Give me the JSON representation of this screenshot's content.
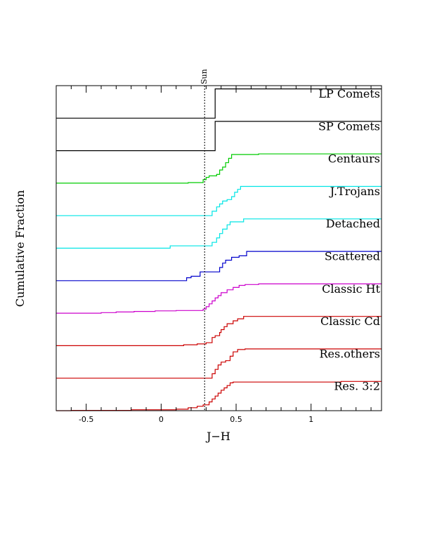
{
  "chart_data": {
    "type": "line",
    "xlabel": "J−H",
    "ylabel": "Cumulative Fraction",
    "xlim": [
      -0.7,
      1.47
    ],
    "x_ticks": [
      "-0.5",
      "0",
      "0.5",
      "1"
    ],
    "x_tick_values": [
      -0.5,
      0,
      0.5,
      1
    ],
    "reference_line": {
      "label": "Sun",
      "x": 0.29
    },
    "series": [
      {
        "name": "LP Comets",
        "color": "#000000",
        "steps": [
          [
            -0.7,
            0
          ],
          [
            0.36,
            0
          ],
          [
            0.36,
            1
          ],
          [
            1.47,
            1
          ]
        ]
      },
      {
        "name": "SP Comets",
        "color": "#000000",
        "steps": [
          [
            -0.7,
            0
          ],
          [
            0.36,
            0
          ],
          [
            0.36,
            1
          ],
          [
            1.47,
            1
          ]
        ]
      },
      {
        "name": "Centaurs",
        "color": "#00cc00",
        "steps": [
          [
            -0.7,
            0
          ],
          [
            0.18,
            0
          ],
          [
            0.18,
            0.02
          ],
          [
            0.28,
            0.02
          ],
          [
            0.28,
            0.12
          ],
          [
            0.3,
            0.12
          ],
          [
            0.3,
            0.2
          ],
          [
            0.32,
            0.2
          ],
          [
            0.32,
            0.25
          ],
          [
            0.37,
            0.25
          ],
          [
            0.37,
            0.3
          ],
          [
            0.39,
            0.3
          ],
          [
            0.39,
            0.45
          ],
          [
            0.41,
            0.45
          ],
          [
            0.41,
            0.55
          ],
          [
            0.43,
            0.55
          ],
          [
            0.43,
            0.7
          ],
          [
            0.45,
            0.7
          ],
          [
            0.45,
            0.85
          ],
          [
            0.47,
            0.85
          ],
          [
            0.47,
            0.98
          ],
          [
            0.65,
            0.98
          ],
          [
            0.65,
            1
          ],
          [
            1.47,
            1
          ]
        ]
      },
      {
        "name": "J.Trojans",
        "color": "#00e5e5",
        "steps": [
          [
            -0.7,
            0
          ],
          [
            0.34,
            0
          ],
          [
            0.34,
            0.15
          ],
          [
            0.37,
            0.15
          ],
          [
            0.37,
            0.3
          ],
          [
            0.39,
            0.3
          ],
          [
            0.39,
            0.4
          ],
          [
            0.41,
            0.4
          ],
          [
            0.41,
            0.5
          ],
          [
            0.44,
            0.5
          ],
          [
            0.44,
            0.55
          ],
          [
            0.47,
            0.55
          ],
          [
            0.47,
            0.65
          ],
          [
            0.49,
            0.65
          ],
          [
            0.49,
            0.8
          ],
          [
            0.51,
            0.8
          ],
          [
            0.51,
            0.9
          ],
          [
            0.53,
            0.9
          ],
          [
            0.53,
            1
          ],
          [
            1.47,
            1
          ]
        ]
      },
      {
        "name": "Detached",
        "color": "#00e5e5",
        "steps": [
          [
            -0.7,
            0
          ],
          [
            0.06,
            0
          ],
          [
            0.06,
            0.08
          ],
          [
            0.34,
            0.08
          ],
          [
            0.34,
            0.2
          ],
          [
            0.37,
            0.2
          ],
          [
            0.37,
            0.35
          ],
          [
            0.39,
            0.35
          ],
          [
            0.39,
            0.5
          ],
          [
            0.41,
            0.5
          ],
          [
            0.41,
            0.65
          ],
          [
            0.44,
            0.65
          ],
          [
            0.44,
            0.8
          ],
          [
            0.46,
            0.8
          ],
          [
            0.46,
            0.9
          ],
          [
            0.55,
            0.9
          ],
          [
            0.55,
            1
          ],
          [
            1.47,
            1
          ]
        ]
      },
      {
        "name": "Scattered",
        "color": "#0000cc",
        "steps": [
          [
            -0.7,
            0
          ],
          [
            0.17,
            0
          ],
          [
            0.17,
            0.1
          ],
          [
            0.2,
            0.1
          ],
          [
            0.2,
            0.15
          ],
          [
            0.26,
            0.15
          ],
          [
            0.26,
            0.3
          ],
          [
            0.39,
            0.3
          ],
          [
            0.39,
            0.45
          ],
          [
            0.41,
            0.45
          ],
          [
            0.41,
            0.6
          ],
          [
            0.43,
            0.6
          ],
          [
            0.43,
            0.7
          ],
          [
            0.47,
            0.7
          ],
          [
            0.47,
            0.8
          ],
          [
            0.52,
            0.8
          ],
          [
            0.52,
            0.85
          ],
          [
            0.57,
            0.85
          ],
          [
            0.57,
            1
          ],
          [
            1.47,
            1
          ]
        ]
      },
      {
        "name": "Classic Ht",
        "color": "#cc00cc",
        "steps": [
          [
            -0.7,
            0
          ],
          [
            -0.4,
            0
          ],
          [
            -0.4,
            0.02
          ],
          [
            -0.3,
            0.02
          ],
          [
            -0.3,
            0.04
          ],
          [
            -0.18,
            0.04
          ],
          [
            -0.18,
            0.06
          ],
          [
            -0.04,
            0.06
          ],
          [
            -0.04,
            0.08
          ],
          [
            0.1,
            0.08
          ],
          [
            0.1,
            0.09
          ],
          [
            0.28,
            0.09
          ],
          [
            0.28,
            0.14
          ],
          [
            0.3,
            0.14
          ],
          [
            0.3,
            0.22
          ],
          [
            0.32,
            0.22
          ],
          [
            0.32,
            0.32
          ],
          [
            0.34,
            0.32
          ],
          [
            0.34,
            0.42
          ],
          [
            0.36,
            0.42
          ],
          [
            0.36,
            0.52
          ],
          [
            0.38,
            0.52
          ],
          [
            0.38,
            0.6
          ],
          [
            0.4,
            0.6
          ],
          [
            0.4,
            0.7
          ],
          [
            0.44,
            0.7
          ],
          [
            0.44,
            0.8
          ],
          [
            0.48,
            0.8
          ],
          [
            0.48,
            0.88
          ],
          [
            0.52,
            0.88
          ],
          [
            0.52,
            0.95
          ],
          [
            0.56,
            0.95
          ],
          [
            0.56,
            0.98
          ],
          [
            0.65,
            0.98
          ],
          [
            0.65,
            1
          ],
          [
            1.47,
            1
          ]
        ]
      },
      {
        "name": "Classic Cd",
        "color": "#cc0000",
        "steps": [
          [
            -0.7,
            0
          ],
          [
            0.15,
            0
          ],
          [
            0.15,
            0.03
          ],
          [
            0.24,
            0.03
          ],
          [
            0.24,
            0.06
          ],
          [
            0.3,
            0.06
          ],
          [
            0.3,
            0.1
          ],
          [
            0.34,
            0.1
          ],
          [
            0.34,
            0.28
          ],
          [
            0.36,
            0.28
          ],
          [
            0.36,
            0.34
          ],
          [
            0.39,
            0.34
          ],
          [
            0.39,
            0.45
          ],
          [
            0.4,
            0.45
          ],
          [
            0.4,
            0.55
          ],
          [
            0.42,
            0.55
          ],
          [
            0.42,
            0.65
          ],
          [
            0.44,
            0.65
          ],
          [
            0.44,
            0.75
          ],
          [
            0.48,
            0.75
          ],
          [
            0.48,
            0.85
          ],
          [
            0.51,
            0.85
          ],
          [
            0.51,
            0.92
          ],
          [
            0.55,
            0.92
          ],
          [
            0.55,
            1
          ],
          [
            1.47,
            1
          ]
        ]
      },
      {
        "name": "Res.others",
        "color": "#cc0000",
        "steps": [
          [
            -0.7,
            0
          ],
          [
            0.34,
            0
          ],
          [
            0.34,
            0.15
          ],
          [
            0.36,
            0.15
          ],
          [
            0.36,
            0.3
          ],
          [
            0.38,
            0.3
          ],
          [
            0.38,
            0.45
          ],
          [
            0.4,
            0.45
          ],
          [
            0.4,
            0.55
          ],
          [
            0.43,
            0.55
          ],
          [
            0.43,
            0.6
          ],
          [
            0.46,
            0.6
          ],
          [
            0.46,
            0.75
          ],
          [
            0.48,
            0.75
          ],
          [
            0.48,
            0.9
          ],
          [
            0.51,
            0.9
          ],
          [
            0.51,
            0.98
          ],
          [
            0.56,
            0.98
          ],
          [
            0.56,
            1
          ],
          [
            1.47,
            1
          ]
        ]
      },
      {
        "name": "Res. 3:2",
        "color": "#cc0000",
        "steps": [
          [
            -0.7,
            0
          ],
          [
            -0.6,
            0
          ],
          [
            -0.6,
            0.01
          ],
          [
            -0.2,
            0.01
          ],
          [
            -0.2,
            0.03
          ],
          [
            0.1,
            0.03
          ],
          [
            0.1,
            0.05
          ],
          [
            0.18,
            0.05
          ],
          [
            0.18,
            0.1
          ],
          [
            0.24,
            0.1
          ],
          [
            0.24,
            0.15
          ],
          [
            0.28,
            0.15
          ],
          [
            0.28,
            0.2
          ],
          [
            0.32,
            0.2
          ],
          [
            0.32,
            0.3
          ],
          [
            0.34,
            0.3
          ],
          [
            0.34,
            0.4
          ],
          [
            0.36,
            0.4
          ],
          [
            0.36,
            0.5
          ],
          [
            0.38,
            0.5
          ],
          [
            0.38,
            0.6
          ],
          [
            0.4,
            0.6
          ],
          [
            0.4,
            0.7
          ],
          [
            0.42,
            0.7
          ],
          [
            0.42,
            0.78
          ],
          [
            0.44,
            0.78
          ],
          [
            0.44,
            0.86
          ],
          [
            0.46,
            0.86
          ],
          [
            0.46,
            0.95
          ],
          [
            0.48,
            0.95
          ],
          [
            0.48,
            0.98
          ],
          [
            1.2,
            0.98
          ],
          [
            1.2,
            1
          ],
          [
            1.47,
            1
          ]
        ]
      }
    ]
  }
}
